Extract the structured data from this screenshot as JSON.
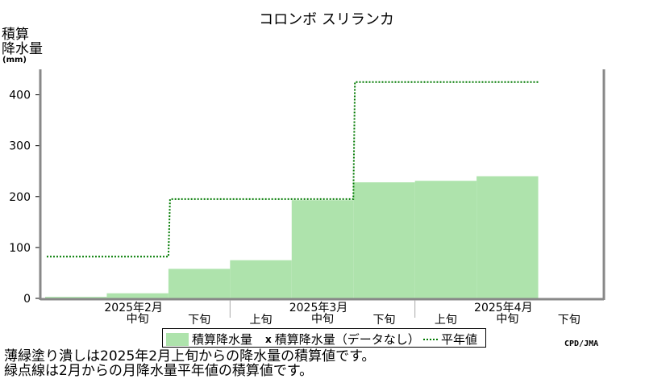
{
  "chart_data": {
    "type": "area",
    "title": "コロンボ スリランカ",
    "ylabel": [
      "積算",
      "降水量",
      "(mm)"
    ],
    "ylim": [
      0,
      450
    ],
    "yticks": [
      0,
      100,
      200,
      300,
      400
    ],
    "periods": [
      "2月上旬",
      "2月中旬",
      "2月下旬",
      "3月上旬",
      "3月中旬",
      "3月下旬",
      "4月上旬",
      "4月中旬",
      "4月下旬"
    ],
    "x_tick_labels": [
      "",
      "中旬",
      "下旬",
      "上旬",
      "中旬",
      "下旬",
      "上旬",
      "中旬",
      "下旬"
    ],
    "month_labels": [
      "2025年2月",
      "2025年3月",
      "2025年4月"
    ],
    "series": [
      {
        "name": "積算降水量",
        "values": [
          3,
          10,
          58,
          75,
          193,
          228,
          231,
          240
        ]
      },
      {
        "name": "積算降水量（データなし）",
        "values": []
      },
      {
        "name": "平年値",
        "values": [
          82,
          82,
          195,
          195,
          195,
          425,
          425,
          425
        ]
      }
    ],
    "colors": {
      "fill": "#aee3ac",
      "normal_line": "#007a00",
      "axis": "#888888"
    }
  },
  "legend": {
    "accum": "積算降水量",
    "nodata_mark": "x",
    "nodata": "積算降水量（データなし）",
    "normal": "平年値"
  },
  "notes": {
    "line1": "薄緑塗り潰しは2025年2月上旬からの降水量の積算値です。",
    "line2": "緑点線は2月からの月降水量平年値の積算値です。"
  },
  "credit": "CPD/JMA"
}
